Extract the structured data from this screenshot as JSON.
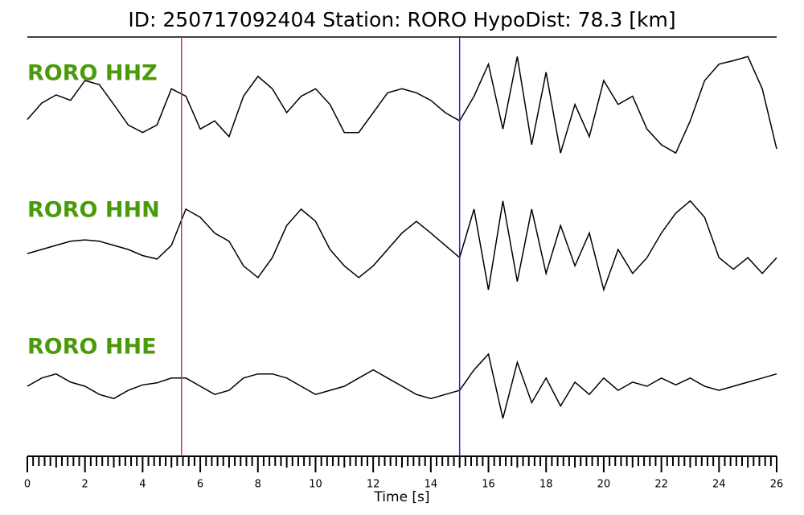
{
  "chart_data": {
    "type": "line",
    "title": "ID: 250717092404   Station: RORO   HypoDist:    78.3 [km]",
    "x_label": "Time [s]",
    "x": [
      0,
      0.5,
      1,
      1.5,
      2,
      2.5,
      3,
      3.5,
      4,
      4.5,
      5,
      5.5,
      6,
      6.5,
      7,
      7.5,
      8,
      8.5,
      9,
      9.5,
      10,
      10.5,
      11,
      11.5,
      12,
      12.5,
      13,
      13.5,
      14,
      14.5,
      15,
      15.5,
      16,
      16.5,
      17,
      17.5,
      18,
      18.5,
      19,
      19.5,
      20,
      20.5,
      21,
      21.5,
      22,
      22.5,
      23,
      23.5,
      24,
      24.5,
      25,
      25.5,
      26
    ],
    "xlim": [
      0,
      26
    ],
    "xticks": [
      0,
      2,
      4,
      6,
      8,
      10,
      12,
      14,
      16,
      18,
      20,
      22,
      24,
      26
    ],
    "ylim": [
      -1,
      1
    ],
    "label_color": "#4a9a0a",
    "series": [
      {
        "name": "RORO HHZ",
        "color": "#000000",
        "values": [
          -0.1,
          0.14,
          0.26,
          0.18,
          0.47,
          0.41,
          0.12,
          -0.18,
          -0.29,
          -0.18,
          0.35,
          0.24,
          -0.24,
          -0.12,
          -0.35,
          0.24,
          0.53,
          0.35,
          0,
          0.24,
          0.35,
          0.12,
          -0.29,
          -0.29,
          0,
          0.29,
          0.35,
          0.29,
          0.18,
          0,
          -0.12,
          0.24,
          0.71,
          -0.24,
          0.82,
          -0.47,
          0.59,
          -0.59,
          0.12,
          -0.35,
          0.47,
          0.12,
          0.24,
          -0.24,
          -0.47,
          -0.59,
          -0.12,
          0.47,
          0.71,
          0.76,
          0.82,
          0.35,
          -0.53
        ]
      },
      {
        "name": "RORO HHN",
        "color": "#000000",
        "values": [
          -0.06,
          0,
          0.06,
          0.12,
          0.14,
          0.12,
          0.06,
          0,
          -0.09,
          -0.14,
          0.06,
          0.59,
          0.47,
          0.24,
          0.12,
          -0.24,
          -0.41,
          -0.12,
          0.35,
          0.59,
          0.41,
          0,
          -0.24,
          -0.41,
          -0.24,
          0,
          0.24,
          0.41,
          0.24,
          0.06,
          -0.12,
          0.59,
          -0.59,
          0.71,
          -0.47,
          0.59,
          -0.35,
          0.35,
          -0.24,
          0.24,
          -0.59,
          0,
          -0.35,
          -0.12,
          0.24,
          0.53,
          0.71,
          0.47,
          -0.12,
          -0.29,
          -0.12,
          -0.35,
          -0.12
        ]
      },
      {
        "name": "RORO HHE",
        "color": "#000000",
        "values": [
          0,
          0.12,
          0.18,
          0.06,
          0,
          -0.12,
          -0.18,
          -0.06,
          0.02,
          0.05,
          0.12,
          0.12,
          0,
          -0.12,
          -0.06,
          0.12,
          0.18,
          0.18,
          0.12,
          0,
          -0.12,
          -0.06,
          0,
          0.12,
          0.24,
          0.12,
          0,
          -0.12,
          -0.18,
          -0.12,
          -0.06,
          0.24,
          0.47,
          -0.47,
          0.35,
          -0.24,
          0.12,
          -0.29,
          0.06,
          -0.12,
          0.12,
          -0.06,
          0.06,
          0,
          0.12,
          0.02,
          0.12,
          0,
          -0.06,
          0,
          0.06,
          0.12,
          0.18
        ]
      }
    ],
    "vlines": [
      {
        "x": 5.35,
        "color": "#e03030"
      },
      {
        "x": 15.0,
        "color": "#2233cc"
      }
    ]
  }
}
